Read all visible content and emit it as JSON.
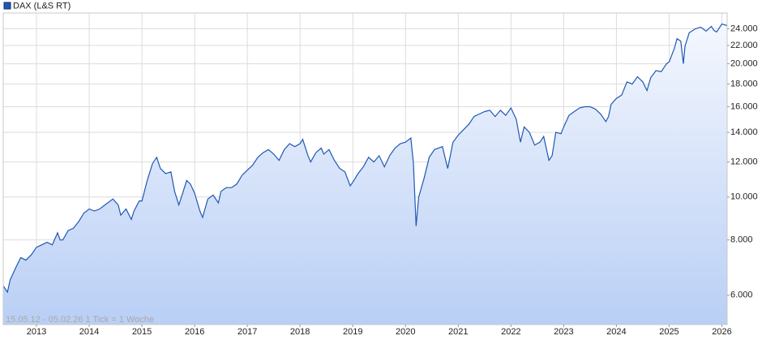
{
  "chart_data": {
    "type": "line",
    "legend": "DAX (L&S RT)",
    "note": "15.05.12 - 05.02.26   1 Tick = 1 Woche",
    "log_scale": true,
    "grid": true,
    "color": "#1f58b4",
    "xlim": [
      2012.37,
      2026.1
    ],
    "xticks": [
      2013,
      2014,
      2015,
      2016,
      2017,
      2018,
      2019,
      2020,
      2021,
      2022,
      2023,
      2024,
      2025,
      2026
    ],
    "ylim": [
      5150,
      26050
    ],
    "yticks": [
      {
        "value": 6000,
        "label": "6.000"
      },
      {
        "value": 8000,
        "label": "8.000"
      },
      {
        "value": 10000,
        "label": "10.000"
      },
      {
        "value": 12000,
        "label": "12.000"
      },
      {
        "value": 14000,
        "label": "14.000"
      },
      {
        "value": 16000,
        "label": "16.000"
      },
      {
        "value": 18000,
        "label": "18.000"
      },
      {
        "value": 20000,
        "label": "20.000"
      },
      {
        "value": 22000,
        "label": "22.000"
      },
      {
        "value": 24000,
        "label": "24.000"
      }
    ],
    "x": [
      2012.37,
      2012.45,
      2012.5,
      2012.6,
      2012.7,
      2012.8,
      2012.9,
      2013.0,
      2013.1,
      2013.2,
      2013.3,
      2013.4,
      2013.45,
      2013.5,
      2013.6,
      2013.7,
      2013.8,
      2013.9,
      2014.0,
      2014.1,
      2014.2,
      2014.3,
      2014.45,
      2014.55,
      2014.6,
      2014.7,
      2014.8,
      2014.85,
      2014.95,
      2015.0,
      2015.1,
      2015.2,
      2015.28,
      2015.35,
      2015.45,
      2015.55,
      2015.62,
      2015.7,
      2015.75,
      2015.85,
      2015.92,
      2016.0,
      2016.1,
      2016.15,
      2016.25,
      2016.35,
      2016.45,
      2016.5,
      2016.6,
      2016.7,
      2016.8,
      2016.9,
      2017.0,
      2017.1,
      2017.2,
      2017.3,
      2017.4,
      2017.5,
      2017.6,
      2017.7,
      2017.8,
      2017.9,
      2018.0,
      2018.05,
      2018.15,
      2018.2,
      2018.3,
      2018.4,
      2018.45,
      2018.55,
      2018.65,
      2018.75,
      2018.85,
      2018.95,
      2019.0,
      2019.1,
      2019.2,
      2019.3,
      2019.4,
      2019.5,
      2019.6,
      2019.7,
      2019.8,
      2019.9,
      2020.0,
      2020.1,
      2020.15,
      2020.2,
      2020.25,
      2020.35,
      2020.45,
      2020.55,
      2020.7,
      2020.8,
      2020.9,
      2021.0,
      2021.2,
      2021.3,
      2021.4,
      2021.5,
      2021.6,
      2021.7,
      2021.8,
      2021.9,
      2022.0,
      2022.1,
      2022.18,
      2022.25,
      2022.35,
      2022.45,
      2022.55,
      2022.62,
      2022.72,
      2022.78,
      2022.85,
      2022.95,
      2023.0,
      2023.1,
      2023.2,
      2023.3,
      2023.4,
      2023.5,
      2023.6,
      2023.7,
      2023.8,
      2023.85,
      2023.9,
      2024.0,
      2024.1,
      2024.2,
      2024.3,
      2024.4,
      2024.5,
      2024.58,
      2024.65,
      2024.75,
      2024.85,
      2024.95,
      2025.0,
      2025.1,
      2025.15,
      2025.22,
      2025.27,
      2025.3,
      2025.38,
      2025.5,
      2025.6,
      2025.7,
      2025.8,
      2025.85,
      2025.9,
      2026.0,
      2026.1
    ],
    "values": [
      6300,
      6100,
      6500,
      6900,
      7300,
      7200,
      7400,
      7700,
      7800,
      7900,
      7800,
      8300,
      8000,
      8000,
      8400,
      8500,
      8800,
      9200,
      9400,
      9300,
      9400,
      9600,
      9900,
      9600,
      9100,
      9400,
      8900,
      9300,
      9800,
      9800,
      10900,
      11900,
      12300,
      11600,
      11300,
      11400,
      10300,
      9600,
      10000,
      10900,
      10700,
      10200,
      9300,
      9000,
      9900,
      10100,
      9700,
      10300,
      10500,
      10500,
      10700,
      11200,
      11500,
      11800,
      12300,
      12600,
      12800,
      12500,
      12100,
      12800,
      13200,
      13000,
      13200,
      13500,
      12400,
      12000,
      12600,
      12900,
      12500,
      12800,
      12100,
      11600,
      11400,
      10600,
      10800,
      11300,
      11700,
      12300,
      12000,
      12400,
      11700,
      12400,
      12900,
      13200,
      13300,
      13600,
      11900,
      8600,
      10000,
      11000,
      12300,
      12800,
      13000,
      11600,
      13300,
      13800,
      14600,
      15200,
      15400,
      15600,
      15700,
      15200,
      15700,
      15300,
      15900,
      15000,
      13300,
      14400,
      14000,
      13100,
      13300,
      13700,
      12100,
      12400,
      14000,
      13900,
      14400,
      15300,
      15600,
      15900,
      16000,
      16000,
      15800,
      15400,
      14800,
      15200,
      16200,
      16700,
      17000,
      18200,
      18000,
      18700,
      18200,
      17400,
      18600,
      19300,
      19200,
      20000,
      20200,
      21700,
      22800,
      22500,
      20000,
      21900,
      23500,
      24000,
      24200,
      23700,
      24300,
      23800,
      23600,
      24600,
      24400
    ]
  }
}
